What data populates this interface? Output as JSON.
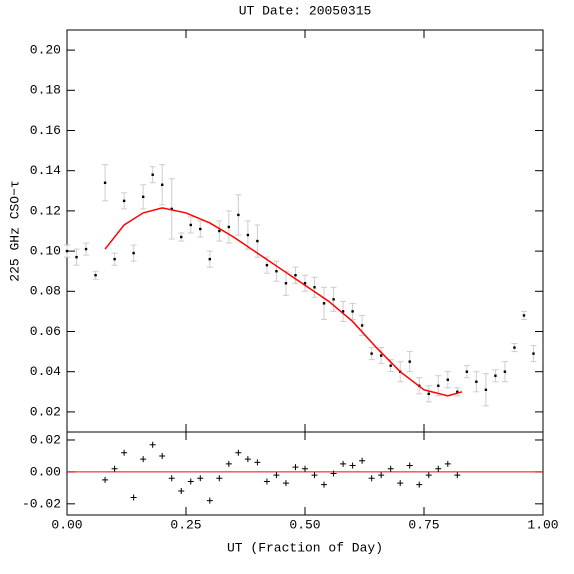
{
  "chart_data": [
    {
      "type": "scatter",
      "title": "UT Date: 20050315",
      "y_label": "225 GHz CSO−τ",
      "xlim": [
        0,
        1
      ],
      "ylim": [
        0.01,
        0.21
      ],
      "xticks": [
        0,
        0.25,
        0.5,
        0.75,
        1
      ],
      "yticks": [
        {
          "value": 0.02,
          "label": "0.02"
        },
        {
          "value": 0.04,
          "label": "0.04"
        },
        {
          "value": 0.06,
          "label": "0.06"
        },
        {
          "value": 0.08,
          "label": "0.08"
        },
        {
          "value": 0.1,
          "label": "0.10"
        },
        {
          "value": 0.12,
          "label": "0.12"
        },
        {
          "value": 0.14,
          "label": "0.14"
        },
        {
          "value": 0.16,
          "label": "0.16"
        },
        {
          "value": 0.18,
          "label": "0.18"
        },
        {
          "value": 0.2,
          "label": "0.20"
        }
      ],
      "series": [
        {
          "mark": "point",
          "color": "#000000",
          "error_color": "#cccccc",
          "x": [
            0,
            0.02,
            0.04,
            0.06,
            0.08,
            0.1,
            0.12,
            0.14,
            0.16,
            0.18,
            0.2,
            0.22,
            0.24,
            0.26,
            0.28,
            0.3,
            0.32,
            0.34,
            0.36,
            0.38,
            0.4,
            0.42,
            0.44,
            0.46,
            0.48,
            0.5,
            0.52,
            0.54,
            0.56,
            0.58,
            0.6,
            0.62,
            0.64,
            0.66,
            0.68,
            0.7,
            0.72,
            0.74,
            0.76,
            0.78,
            0.8,
            0.82,
            0.84,
            0.86,
            0.88,
            0.9,
            0.92,
            0.94,
            0.96,
            0.98
          ],
          "values": [
            0.1,
            0.097,
            0.101,
            0.088,
            0.134,
            0.096,
            0.125,
            0.099,
            0.127,
            0.138,
            0.133,
            0.121,
            0.107,
            0.113,
            0.111,
            0.096,
            0.11,
            0.112,
            0.118,
            0.108,
            0.105,
            0.093,
            0.09,
            0.084,
            0.088,
            0.084,
            0.082,
            0.074,
            0.076,
            0.07,
            0.07,
            0.063,
            0.049,
            0.048,
            0.043,
            0.04,
            0.045,
            0.033,
            0.029,
            0.033,
            0.036,
            0.03,
            0.04,
            0.035,
            0.031,
            0.038,
            0.04,
            0.052,
            0.068,
            0.049
          ],
          "errors": [
            0.003,
            0.004,
            0.003,
            0.002,
            0.009,
            0.003,
            0.004,
            0.004,
            0.006,
            0.004,
            0.01,
            0.015,
            0.002,
            0.004,
            0.004,
            0.004,
            0.005,
            0.008,
            0.01,
            0.007,
            0.008,
            0.004,
            0.005,
            0.006,
            0.004,
            0.004,
            0.005,
            0.008,
            0.006,
            0.005,
            0.004,
            0.005,
            0.003,
            0.004,
            0.003,
            0.005,
            0.005,
            0.004,
            0.004,
            0.005,
            0.004,
            0.002,
            0.003,
            0.005,
            0.008,
            0.003,
            0.005,
            0.002,
            0.002,
            0.004
          ]
        },
        {
          "mark": "line",
          "color": "#ff0000",
          "x": [
            0.08,
            0.12,
            0.16,
            0.2,
            0.25,
            0.3,
            0.35,
            0.4,
            0.45,
            0.5,
            0.55,
            0.6,
            0.65,
            0.7,
            0.75,
            0.8,
            0.83
          ],
          "values": [
            0.101,
            0.113,
            0.119,
            0.1215,
            0.119,
            0.114,
            0.107,
            0.099,
            0.091,
            0.083,
            0.075,
            0.065,
            0.052,
            0.04,
            0.031,
            0.028,
            0.03
          ]
        }
      ]
    },
    {
      "type": "scatter",
      "x_label": "UT (Fraction of Day)",
      "xlim": [
        0,
        1
      ],
      "ylim": [
        -0.027,
        0.025
      ],
      "xticks": [
        {
          "value": 0,
          "label": "0.00"
        },
        {
          "value": 0.25,
          "label": "0.25"
        },
        {
          "value": 0.5,
          "label": "0.50"
        },
        {
          "value": 0.75,
          "label": "0.75"
        },
        {
          "value": 1,
          "label": "1.00"
        }
      ],
      "yticks": [
        {
          "value": -0.02,
          "label": "-0.02"
        },
        {
          "value": 0,
          "label": "0.00"
        },
        {
          "value": 0.02,
          "label": "0.02"
        }
      ],
      "reference_line": {
        "value": 0,
        "color": "#ff0000"
      },
      "series": [
        {
          "mark": "cross",
          "color": "#000000",
          "x": [
            0.08,
            0.1,
            0.12,
            0.14,
            0.16,
            0.18,
            0.2,
            0.22,
            0.24,
            0.26,
            0.28,
            0.3,
            0.32,
            0.34,
            0.36,
            0.38,
            0.4,
            0.42,
            0.44,
            0.46,
            0.48,
            0.5,
            0.52,
            0.54,
            0.56,
            0.58,
            0.6,
            0.62,
            0.64,
            0.66,
            0.68,
            0.7,
            0.72,
            0.74,
            0.76,
            0.78,
            0.8,
            0.82
          ],
          "values": [
            -0.005,
            0.002,
            0.012,
            -0.016,
            0.008,
            0.017,
            0.01,
            -0.004,
            -0.012,
            -0.006,
            -0.004,
            -0.018,
            -0.004,
            0.005,
            0.012,
            0.008,
            0.006,
            -0.006,
            -0.002,
            -0.007,
            0.003,
            0.002,
            -0.002,
            -0.008,
            -0.001,
            0.005,
            0.004,
            0.007,
            -0.004,
            -0.002,
            0.002,
            -0.007,
            0.004,
            -0.008,
            -0.002,
            0.002,
            0.005,
            -0.002
          ]
        }
      ]
    }
  ]
}
